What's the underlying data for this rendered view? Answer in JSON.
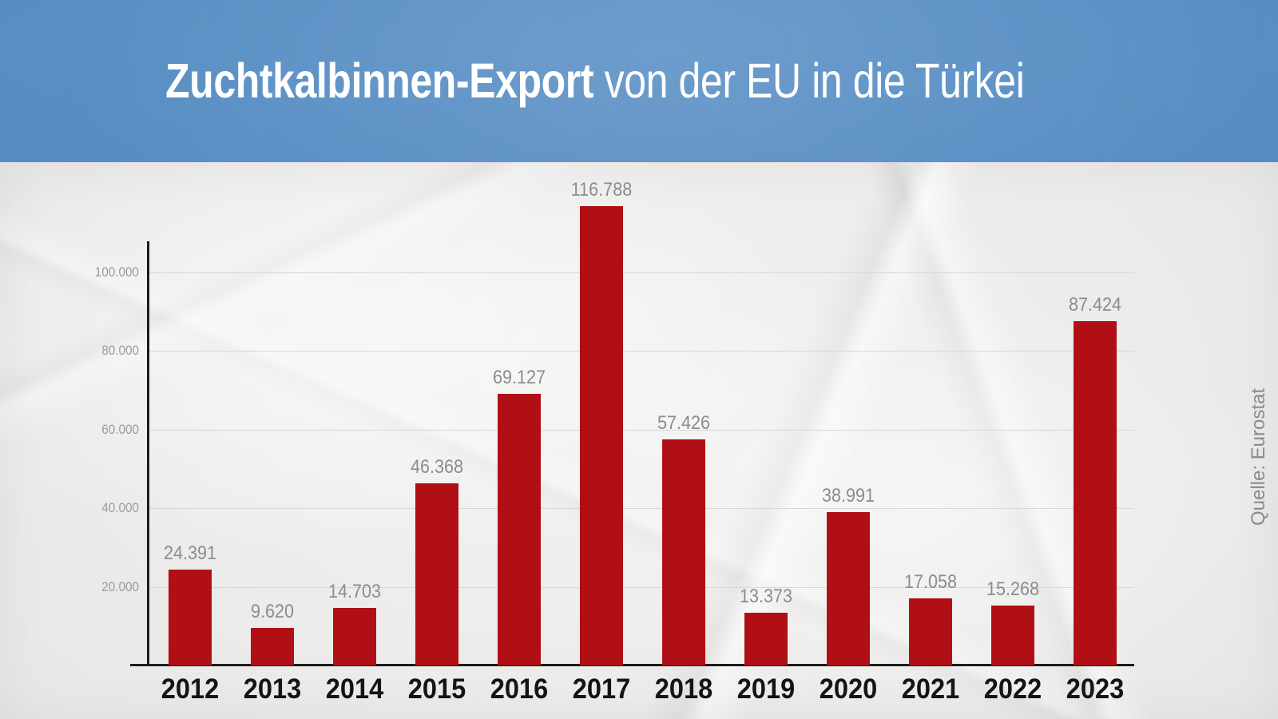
{
  "header": {
    "title_bold": "Zuchtkalbinnen-Export",
    "title_rest": " von der EU in die Türkei"
  },
  "source_label": "Quelle: Eurostat",
  "chart_data": {
    "type": "bar",
    "title": "Zuchtkalbinnen-Export von der EU in die Türkei",
    "categories": [
      "2012",
      "2013",
      "2014",
      "2015",
      "2016",
      "2017",
      "2018",
      "2019",
      "2020",
      "2021",
      "2022",
      "2023"
    ],
    "values": [
      24391,
      9620,
      14703,
      46368,
      69127,
      116788,
      57426,
      13373,
      38991,
      17058,
      15268,
      87424
    ],
    "value_labels": [
      "24.391",
      "9.620",
      "14.703",
      "46.368",
      "69.127",
      "116.788",
      "57.426",
      "13.373",
      "38.991",
      "17.058",
      "15.268",
      "87.424"
    ],
    "xlabel": "",
    "ylabel": "",
    "y_axis": {
      "ticks": [
        20000,
        40000,
        60000,
        80000,
        100000
      ],
      "tick_labels": [
        "20.000",
        "40.000",
        "60.000",
        "80.000",
        "100.000"
      ],
      "range": [
        0,
        120000
      ]
    },
    "grid": true,
    "legend": false,
    "source": "Quelle: Eurostat"
  },
  "colors": {
    "header_blue": "#548bc1",
    "bar_red": "#b01015",
    "paper": "#efeeec",
    "gridline": "#d9d7d3",
    "axis": "#1c1c1c",
    "value_label": "#8c8c8c",
    "ytick_label": "#9b9b9b",
    "year_label": "#141414",
    "title_text": "#ffffff",
    "source_text": "#8a8a8a"
  }
}
